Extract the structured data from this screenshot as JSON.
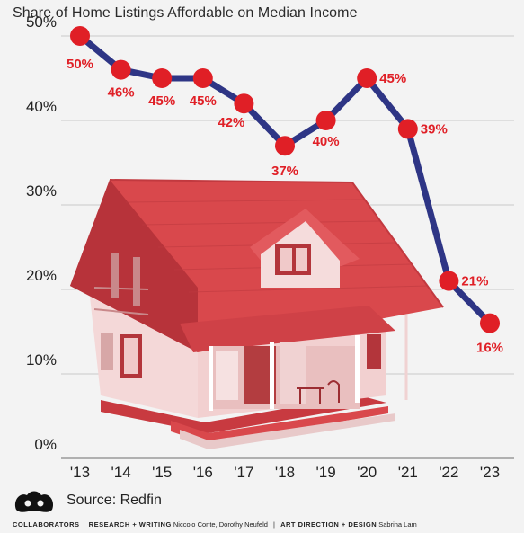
{
  "chart_data": {
    "type": "line",
    "title": "Share of Home Listings Affordable on Median Income",
    "categories": [
      "'13",
      "'14",
      "'15",
      "'16",
      "'17",
      "'18",
      "'19",
      "'20",
      "'21",
      "'22",
      "'23"
    ],
    "values": [
      50,
      46,
      45,
      45,
      42,
      37,
      40,
      45,
      39,
      21,
      16
    ],
    "data_labels": [
      "50%",
      "46%",
      "45%",
      "45%",
      "42%",
      "37%",
      "40%",
      "45%",
      "39%",
      "21%",
      "16%"
    ],
    "y_ticks": [
      0,
      10,
      20,
      30,
      40,
      50
    ],
    "y_tick_labels": [
      "0%",
      "10%",
      "20%",
      "30%",
      "40%",
      "50%"
    ],
    "ylim": [
      0,
      50
    ],
    "grid": true,
    "colors": {
      "line": "#2e3585",
      "marker": "#e01f26",
      "label": "#e01f26",
      "house": "#d9484c"
    }
  },
  "footer": {
    "source": "Source: Redfin",
    "brand": "COLLABORATORS",
    "research_label": "RESEARCH + WRITING",
    "research_names": "Niccolo Conte, Dorothy Neufeld",
    "design_label": "ART DIRECTION + DESIGN",
    "design_names": "Sabrina Lam"
  }
}
